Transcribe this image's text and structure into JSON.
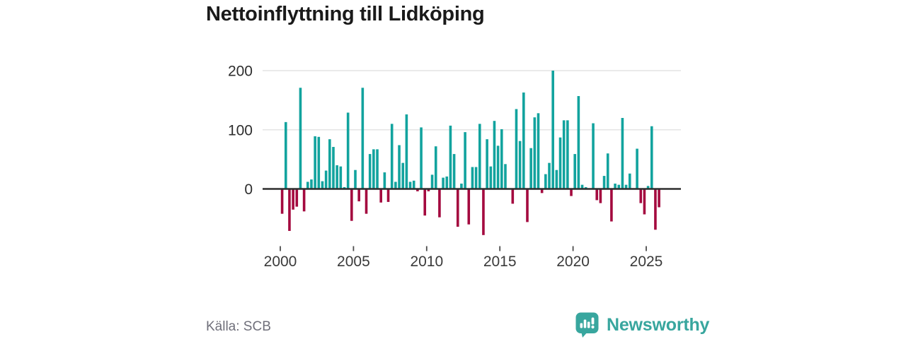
{
  "header": {
    "title": "Nettoinflyttning till Lidköping"
  },
  "footer": {
    "source_label": "Källa: SCB",
    "brand": "Newsworthy"
  },
  "colors": {
    "positive": "#12a39e",
    "negative": "#a40a3f",
    "grid": "#e4e4e4",
    "axis": "#2d2d2d",
    "y_label": "#2e2e2e",
    "x_label": "#3a3a3a",
    "tick": "#4d4d4d",
    "brand": "#38a69e",
    "title": "#1a1a1a",
    "source_text": "#6f6f7a"
  },
  "chart_data": {
    "type": "bar",
    "title": "Nettoinflyttning till Lidköping",
    "source": "SCB",
    "x_unit": "quarter",
    "xlabel": "",
    "ylabel": "",
    "xticks": [
      2000,
      2005,
      2010,
      2015,
      2020,
      2025
    ],
    "yticks": [
      0,
      100,
      200
    ],
    "ylim": [
      -90,
      215
    ],
    "grid": "horizontal",
    "legend": "none",
    "positive_color_meaning": "net in-migration",
    "negative_color_meaning": "net out-migration",
    "series_quarterly": [
      {
        "year": 2000,
        "values": [
          -42,
          113,
          -71,
          -35
        ]
      },
      {
        "year": 2001,
        "values": [
          -30,
          171,
          -38,
          12
        ]
      },
      {
        "year": 2002,
        "values": [
          16,
          89,
          88,
          13
        ]
      },
      {
        "year": 2003,
        "values": [
          31,
          84,
          71,
          40
        ]
      },
      {
        "year": 2004,
        "values": [
          38,
          3,
          129,
          -54
        ]
      },
      {
        "year": 2005,
        "values": [
          32,
          -21,
          171,
          -42
        ]
      },
      {
        "year": 2006,
        "values": [
          59,
          67,
          67,
          -23
        ]
      },
      {
        "year": 2007,
        "values": [
          28,
          -22,
          110,
          12
        ]
      },
      {
        "year": 2008,
        "values": [
          74,
          44,
          126,
          12
        ]
      },
      {
        "year": 2009,
        "values": [
          14,
          -4,
          104,
          -45
        ]
      },
      {
        "year": 2010,
        "values": [
          -4,
          24,
          72,
          -48
        ]
      },
      {
        "year": 2011,
        "values": [
          19,
          21,
          107,
          59
        ]
      },
      {
        "year": 2012,
        "values": [
          -64,
          9,
          96,
          -60
        ]
      },
      {
        "year": 2013,
        "values": [
          37,
          37,
          110,
          -78
        ]
      },
      {
        "year": 2014,
        "values": [
          84,
          38,
          115,
          73
        ]
      },
      {
        "year": 2015,
        "values": [
          101,
          42,
          0,
          -25
        ]
      },
      {
        "year": 2016,
        "values": [
          135,
          81,
          163,
          -56
        ]
      },
      {
        "year": 2017,
        "values": [
          69,
          121,
          128,
          -7
        ]
      },
      {
        "year": 2018,
        "values": [
          25,
          44,
          200,
          32
        ]
      },
      {
        "year": 2019,
        "values": [
          87,
          116,
          116,
          -12
        ]
      },
      {
        "year": 2020,
        "values": [
          59,
          157,
          7,
          3
        ]
      },
      {
        "year": 2021,
        "values": [
          0,
          111,
          -19,
          -24
        ]
      },
      {
        "year": 2022,
        "values": [
          22,
          60,
          -55,
          9
        ]
      },
      {
        "year": 2023,
        "values": [
          7,
          120,
          7,
          26
        ]
      },
      {
        "year": 2024,
        "values": [
          0,
          68,
          -24,
          -43
        ]
      },
      {
        "year": 2025,
        "values": [
          5,
          106,
          -69,
          -31
        ]
      }
    ]
  }
}
